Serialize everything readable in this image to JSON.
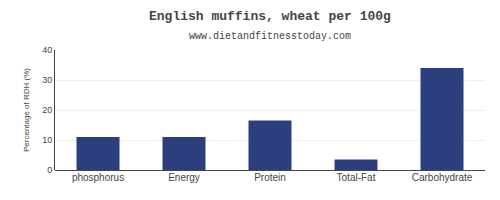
{
  "chart_data": {
    "type": "bar",
    "title": "English muffins, wheat per 100g",
    "subtitle": "www.dietandfitnesstoday.com",
    "categories": [
      "phosphorus",
      "Energy",
      "Protein",
      "Total-Fat",
      "Carbohydrate"
    ],
    "values": [
      11,
      11,
      16.5,
      3.5,
      34
    ],
    "color": "#2b3f7e",
    "ylabel": "Percentage of RDH (%)",
    "ylim": [
      0,
      40
    ],
    "yticks": [
      0,
      10,
      20,
      30,
      40
    ],
    "grid": true
  }
}
